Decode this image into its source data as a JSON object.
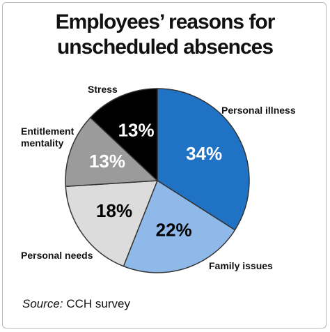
{
  "chart_data": {
    "type": "pie",
    "title": "Employees’ reasons for unscheduled absences",
    "categories": [
      "Personal illness",
      "Family issues",
      "Personal needs",
      "Entitlement mentality",
      "Stress"
    ],
    "values": [
      34,
      22,
      18,
      13,
      13
    ],
    "value_labels": [
      "34%",
      "22%",
      "18%",
      "13%",
      "13%"
    ],
    "colors": [
      "#1f72c4",
      "#8fb9e8",
      "#dcdcdc",
      "#9b9b9b",
      "#000000"
    ],
    "label_colors": [
      "#ffffff",
      "#000000",
      "#000000",
      "#ffffff",
      "#ffffff"
    ],
    "source_label": "Source:",
    "source_text": "CCH survey"
  }
}
